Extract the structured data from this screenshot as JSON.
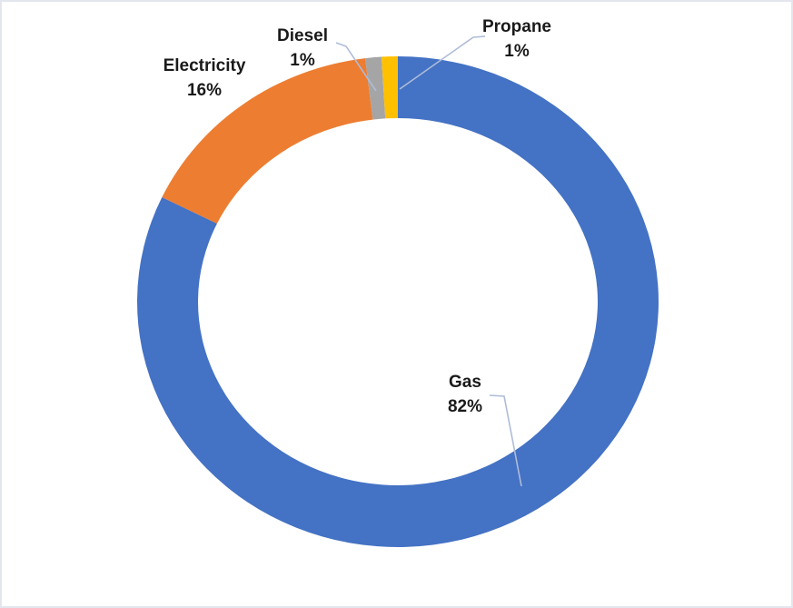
{
  "chart_data": {
    "type": "pie",
    "subtype": "doughnut",
    "title": "",
    "categories": [
      "Gas",
      "Electricity",
      "Diesel",
      "Propane"
    ],
    "values": [
      82,
      16,
      1,
      1
    ],
    "unit": "percent",
    "start_angle_deg": 0,
    "direction": "clockwise",
    "donut_hole_ratio": 0.75,
    "legend": "none",
    "data_label_style": "category name and percentage outside chart with leader lines",
    "segments": [
      {
        "label": "Gas",
        "value": 82,
        "pct_label": "82%",
        "color": "#4472C4"
      },
      {
        "label": "Electricity",
        "value": 16,
        "pct_label": "16%",
        "color": "#ED7D31"
      },
      {
        "label": "Diesel",
        "value": 1,
        "pct_label": "1%",
        "color": "#A5A5A5"
      },
      {
        "label": "Propane",
        "value": 1,
        "pct_label": "1%",
        "color": "#FFC000"
      }
    ],
    "leader_line_color": "#AEBCD8",
    "label_text_color": "#1A1A1A",
    "background_color": "#FFFFFF"
  }
}
